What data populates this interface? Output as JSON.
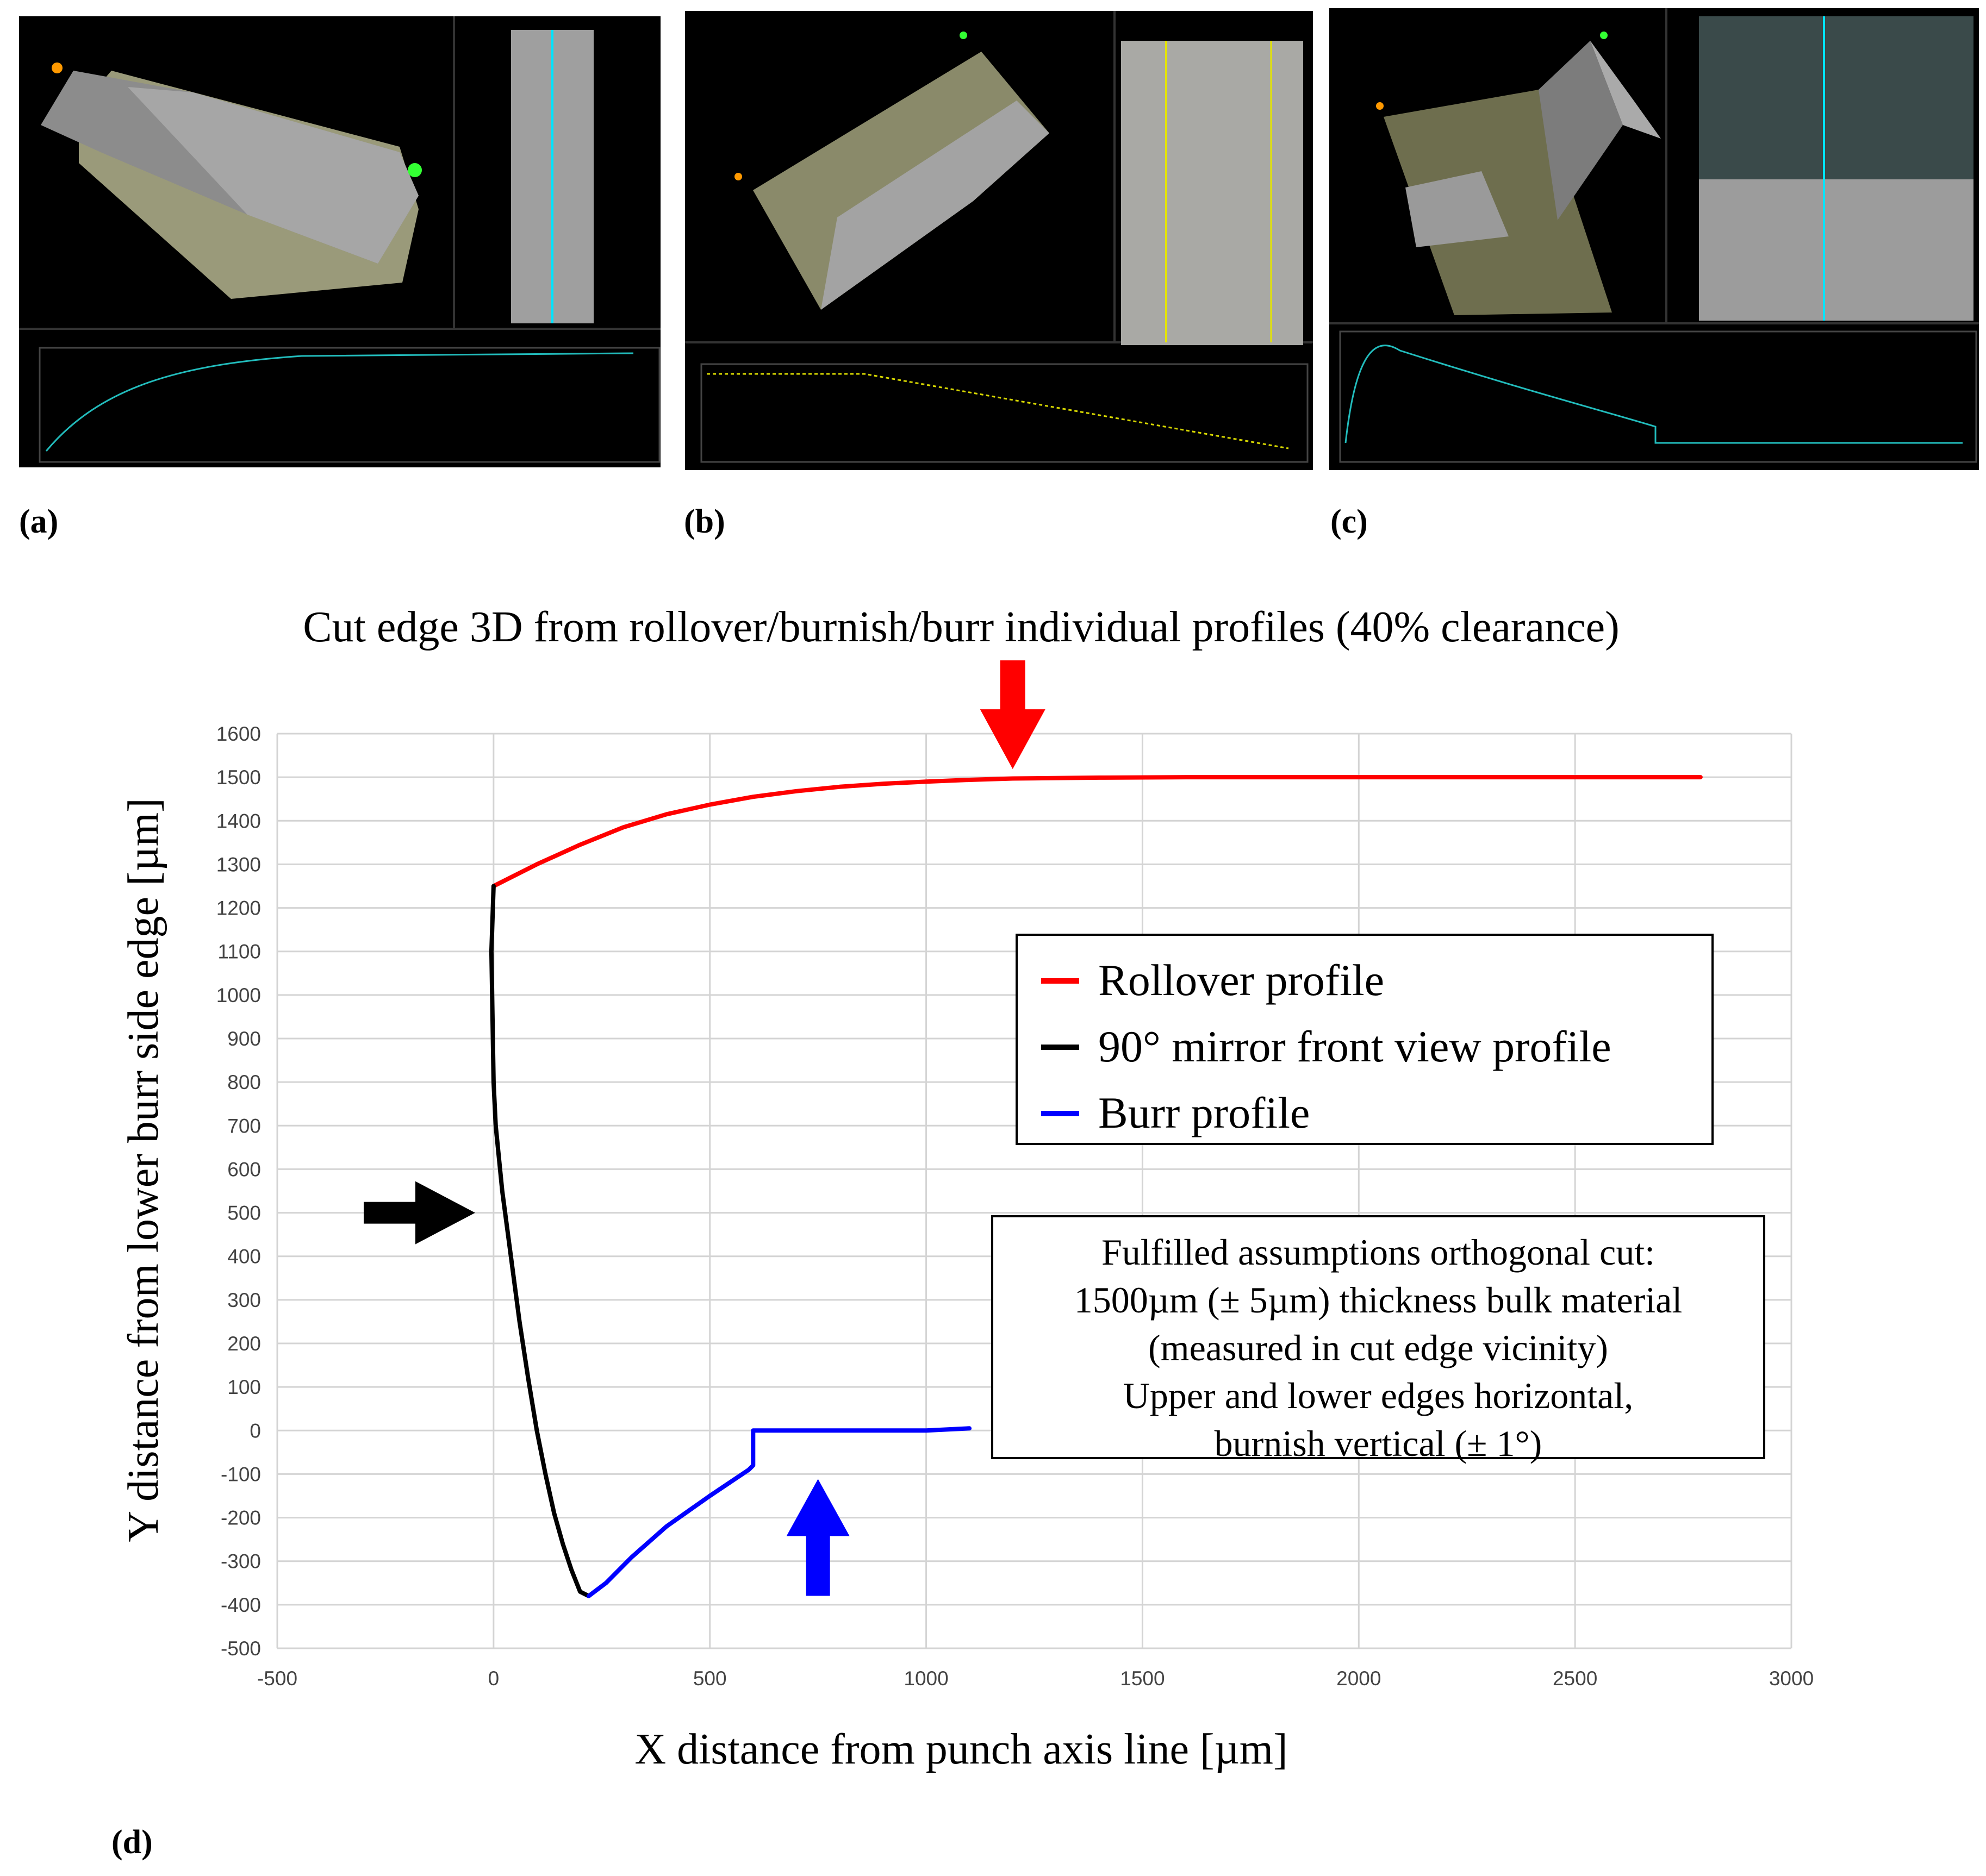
{
  "panels": [
    {
      "label": "(a)"
    },
    {
      "label": "(b)"
    },
    {
      "label": "(c)"
    }
  ],
  "chart_label": "(d)",
  "chart_data": {
    "type": "line",
    "title": "Cut edge 3D from rollover/burnish/burr individual profiles (40% clearance)",
    "xlabel": "X distance from punch axis line [µm]",
    "ylabel": "Y distance from lower burr side edge [µm]",
    "xlim": [
      -500,
      3000
    ],
    "ylim": [
      -500,
      1600
    ],
    "xticks": [
      -500,
      0,
      500,
      1000,
      1500,
      2000,
      2500,
      3000
    ],
    "yticks": [
      -500,
      -400,
      -300,
      -200,
      -100,
      0,
      100,
      200,
      300,
      400,
      500,
      600,
      700,
      800,
      900,
      1000,
      1100,
      1200,
      1300,
      1400,
      1500,
      1600
    ],
    "grid": true,
    "legend_position": "right",
    "series": [
      {
        "name": "Rollover profile",
        "color": "#ff0000",
        "x": [
          0,
          100,
          200,
          300,
          400,
          500,
          600,
          700,
          800,
          900,
          1000,
          1100,
          1200,
          1400,
          1600,
          1800,
          2000,
          2200,
          2400,
          2600,
          2790
        ],
        "y": [
          1250,
          1300,
          1345,
          1385,
          1415,
          1437,
          1455,
          1468,
          1478,
          1485,
          1490,
          1494,
          1497,
          1499,
          1500,
          1500,
          1500,
          1500,
          1500,
          1500,
          1500
        ]
      },
      {
        "name": "90° mirror front view profile",
        "color": "#000000",
        "x": [
          0,
          -5,
          0,
          5,
          20,
          40,
          60,
          80,
          100,
          120,
          140,
          160,
          180,
          200,
          220
        ],
        "y": [
          1250,
          1100,
          800,
          700,
          550,
          400,
          250,
          120,
          0,
          -100,
          -190,
          -260,
          -320,
          -370,
          -380
        ],
        "points": [
          [
            0,
            1250
          ],
          [
            -5,
            1100
          ],
          [
            0,
            800
          ],
          [
            5,
            700
          ],
          [
            20,
            550
          ],
          [
            40,
            400
          ],
          [
            60,
            250
          ],
          [
            80,
            120
          ],
          [
            100,
            0
          ],
          [
            120,
            -100
          ],
          [
            140,
            -190
          ],
          [
            160,
            -260
          ],
          [
            180,
            -320
          ],
          [
            200,
            -370
          ],
          [
            220,
            -380
          ]
        ]
      },
      {
        "name": "Burr profile",
        "color": "#0000ff",
        "points": [
          [
            220,
            -380
          ],
          [
            260,
            -350
          ],
          [
            320,
            -290
          ],
          [
            400,
            -220
          ],
          [
            500,
            -150
          ],
          [
            590,
            -90
          ],
          [
            600,
            -80
          ],
          [
            600,
            0
          ],
          [
            700,
            0
          ],
          [
            800,
            0
          ],
          [
            900,
            0
          ],
          [
            1000,
            0
          ],
          [
            1100,
            5
          ]
        ]
      }
    ],
    "annotations": {
      "note_lines": [
        "Fulfilled assumptions orthogonal cut:",
        "1500µm (± 5µm) thickness bulk material",
        "(measured in cut edge vicinity)",
        "Upper and lower edges horizontal,",
        "burnish vertical (± 1°)"
      ],
      "arrows": [
        {
          "color": "#ff0000",
          "direction": "down",
          "x": 1200,
          "y": 1500
        },
        {
          "color": "#000000",
          "direction": "right",
          "x": -30,
          "y": 500
        },
        {
          "color": "#0000ff",
          "direction": "up",
          "x": 750,
          "y": -130
        }
      ]
    }
  }
}
